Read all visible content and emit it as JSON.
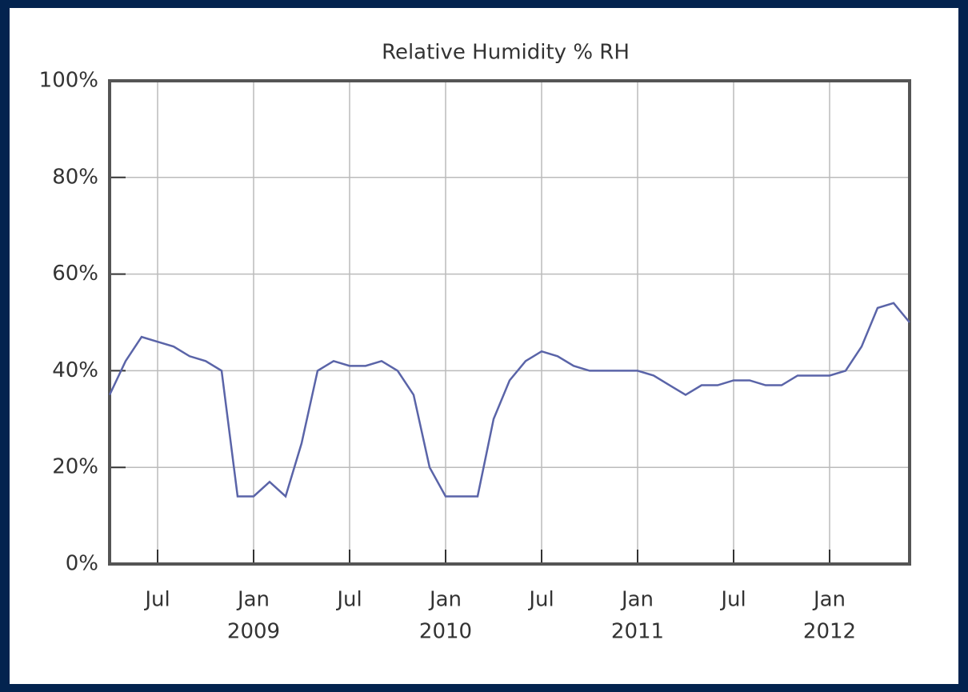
{
  "chart_data": {
    "type": "line",
    "title": "Relative Humidity % RH",
    "x": [
      "2008-04",
      "2008-05",
      "2008-06",
      "2008-07",
      "2008-08",
      "2008-09",
      "2008-10",
      "2008-11",
      "2008-12",
      "2009-01",
      "2009-02",
      "2009-03",
      "2009-04",
      "2009-05",
      "2009-06",
      "2009-07",
      "2009-08",
      "2009-09",
      "2009-10",
      "2009-11",
      "2009-12",
      "2010-01",
      "2010-02",
      "2010-03",
      "2010-04",
      "2010-05",
      "2010-06",
      "2010-07",
      "2010-08",
      "2010-09",
      "2010-10",
      "2010-11",
      "2010-12",
      "2011-01",
      "2011-02",
      "2011-03",
      "2011-04",
      "2011-05",
      "2011-06",
      "2011-07",
      "2011-08",
      "2011-09",
      "2011-10",
      "2011-11",
      "2011-12",
      "2012-01",
      "2012-02",
      "2012-03",
      "2012-04",
      "2012-05",
      "2012-06"
    ],
    "series": [
      {
        "color": "#5a64a8",
        "values": [
          35,
          42,
          47,
          46,
          45,
          43,
          42,
          40,
          14,
          14,
          17,
          14,
          25,
          40,
          42,
          41,
          41,
          42,
          40,
          35,
          20,
          14,
          14,
          14,
          30,
          38,
          42,
          44,
          43,
          41,
          40,
          40,
          40,
          40,
          39,
          37,
          35,
          37,
          37,
          38,
          38,
          37,
          37,
          39,
          39,
          39,
          40,
          45,
          53,
          54,
          50
        ]
      }
    ],
    "xlim": [
      "2008-04",
      "2012-06"
    ],
    "xticks": [
      {
        "value": "2008-07",
        "label": "Jul"
      },
      {
        "value": "2009-01",
        "label": "Jan"
      },
      {
        "value": "2009-07",
        "label": "Jul"
      },
      {
        "value": "2010-01",
        "label": "Jan"
      },
      {
        "value": "2010-07",
        "label": "Jul"
      },
      {
        "value": "2011-01",
        "label": "Jan"
      },
      {
        "value": "2011-07",
        "label": "Jul"
      },
      {
        "value": "2012-01",
        "label": "Jan"
      }
    ],
    "year_labels": [
      {
        "value": "2009-01",
        "label": "2009"
      },
      {
        "value": "2010-01",
        "label": "2010"
      },
      {
        "value": "2011-01",
        "label": "2011"
      },
      {
        "value": "2012-01",
        "label": "2012"
      }
    ],
    "ylim": [
      0,
      100
    ],
    "yticks": [
      {
        "value": 0,
        "label": "0%"
      },
      {
        "value": 20,
        "label": "20%"
      },
      {
        "value": 40,
        "label": "40%"
      },
      {
        "value": 60,
        "label": "60%"
      },
      {
        "value": 80,
        "label": "80%"
      },
      {
        "value": 100,
        "label": "100%"
      }
    ],
    "grid": true
  }
}
